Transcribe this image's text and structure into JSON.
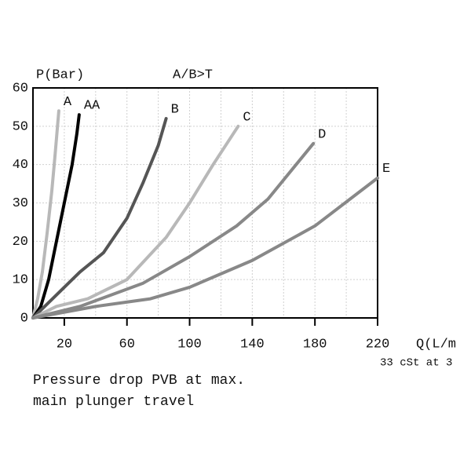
{
  "chart_data": {
    "type": "line",
    "ylabel": "P(Bar)",
    "title": "A/B>T",
    "xlabel": "Q(L/m",
    "xlabel_note": "33 cSt at 3",
    "caption": [
      "Pressure drop PVB at max.",
      "main plunger travel"
    ],
    "xlim": [
      0,
      220
    ],
    "ylim": [
      0,
      60
    ],
    "xticks": [
      20,
      60,
      100,
      140,
      180,
      220
    ],
    "yticks": [
      0,
      10,
      20,
      30,
      40,
      50,
      60
    ],
    "grid": true,
    "series": [
      {
        "name": "A",
        "color": "#b8b8b8",
        "x": [
          0,
          3,
          6,
          9,
          12,
          14,
          16.5
        ],
        "values": [
          0,
          5,
          12,
          22,
          33,
          42,
          54
        ]
      },
      {
        "name": "AA",
        "color": "#000000",
        "x": [
          0,
          5,
          10,
          15,
          20,
          25,
          28,
          29.5
        ],
        "values": [
          0,
          3,
          10,
          20,
          30,
          40,
          48,
          53
        ]
      },
      {
        "name": "B",
        "color": "#555555",
        "x": [
          0,
          10,
          20,
          30,
          45,
          60,
          70,
          80,
          85
        ],
        "values": [
          0,
          4,
          8,
          12,
          17,
          26,
          35,
          45,
          52
        ]
      },
      {
        "name": "C",
        "color": "#b8b8b8",
        "x": [
          0,
          15,
          35,
          60,
          85,
          100,
          115,
          131
        ],
        "values": [
          0,
          3,
          5,
          10,
          21,
          30,
          40,
          50
        ]
      },
      {
        "name": "D",
        "color": "#888888",
        "x": [
          0,
          30,
          70,
          100,
          130,
          150,
          179
        ],
        "values": [
          0,
          3,
          9,
          16,
          24,
          31,
          45.5
        ]
      },
      {
        "name": "E",
        "color": "#888888",
        "x": [
          0,
          40,
          75,
          100,
          140,
          180,
          220
        ],
        "values": [
          0,
          3,
          5,
          8,
          15,
          24,
          36.5
        ]
      }
    ]
  }
}
